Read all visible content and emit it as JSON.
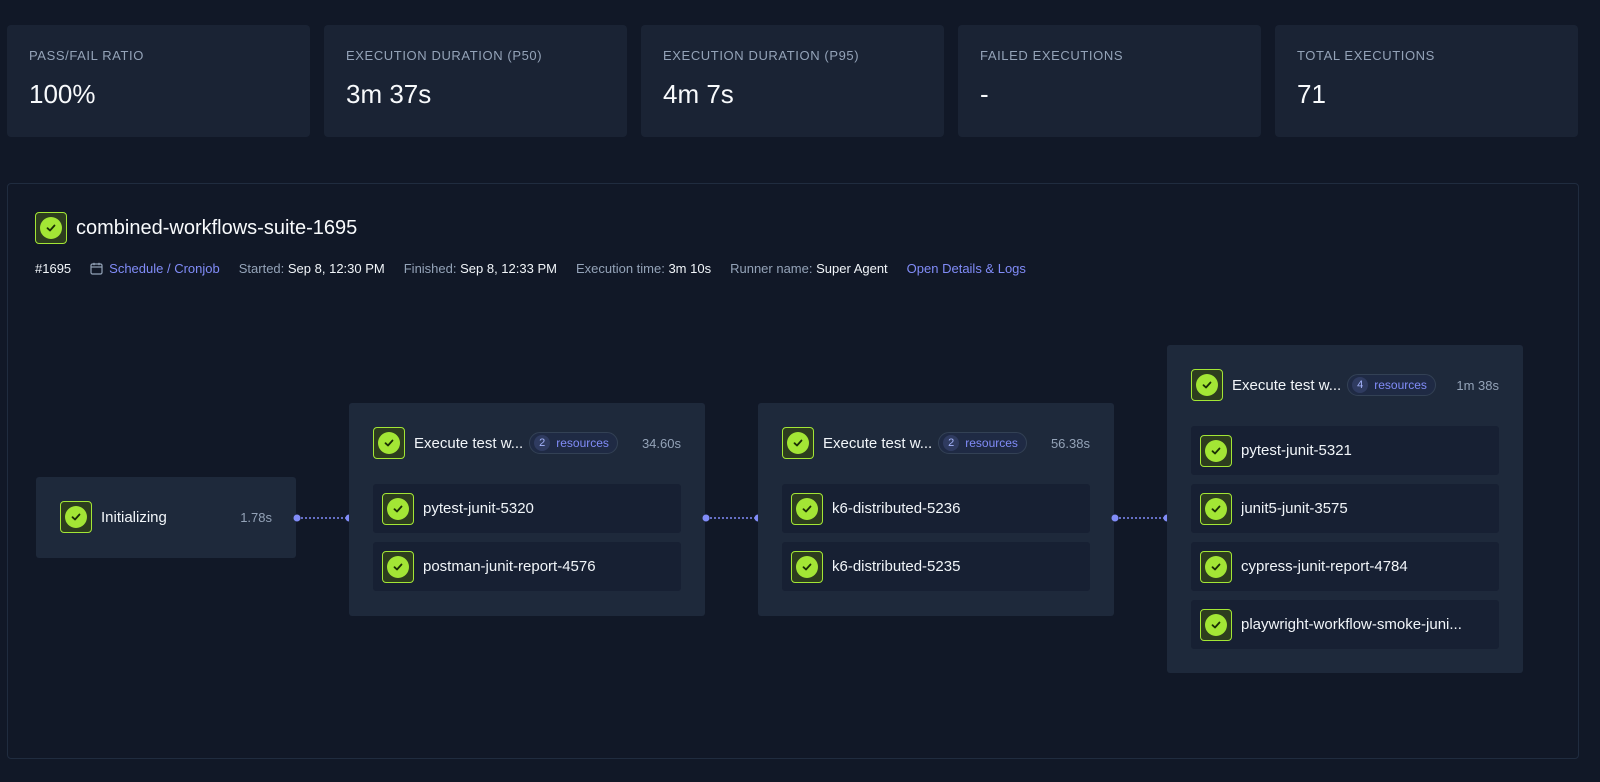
{
  "metrics": [
    {
      "label": "PASS/FAIL RATIO",
      "value": "100%"
    },
    {
      "label": "EXECUTION DURATION (P50)",
      "value": "3m 37s"
    },
    {
      "label": "EXECUTION DURATION (P95)",
      "value": "4m 7s"
    },
    {
      "label": "FAILED EXECUTIONS",
      "value": "-"
    },
    {
      "label": "TOTAL EXECUTIONS",
      "value": "71"
    }
  ],
  "execution": {
    "title": "combined-workflows-suite-1695",
    "number": "#1695",
    "trigger": "Schedule / Cronjob",
    "started_label": "Started:",
    "started": "Sep 8, 12:30 PM",
    "finished_label": "Finished:",
    "finished": "Sep 8, 12:33 PM",
    "exec_time_label": "Execution time:",
    "exec_time": "3m 10s",
    "runner_label": "Runner name:",
    "runner": "Super Agent",
    "details_link": "Open Details & Logs"
  },
  "stages": [
    {
      "name": "Initializing",
      "duration": "1.78s",
      "items": []
    },
    {
      "name": "Execute test w...",
      "count": "2",
      "resources_label": "resources",
      "duration": "34.60s",
      "items": [
        "pytest-junit-5320",
        "postman-junit-report-4576"
      ]
    },
    {
      "name": "Execute test w...",
      "count": "2",
      "resources_label": "resources",
      "duration": "56.38s",
      "items": [
        "k6-distributed-5236",
        "k6-distributed-5235"
      ]
    },
    {
      "name": "Execute test w...",
      "count": "4",
      "resources_label": "resources",
      "duration": "1m 38s",
      "items": [
        "pytest-junit-5321",
        "junit5-junit-3575",
        "cypress-junit-report-4784",
        "playwright-workflow-smoke-juni..."
      ]
    }
  ],
  "colors": {
    "success": "#a3e635",
    "accent": "#818cf8",
    "background": "#111827",
    "card": "#1e293b"
  }
}
